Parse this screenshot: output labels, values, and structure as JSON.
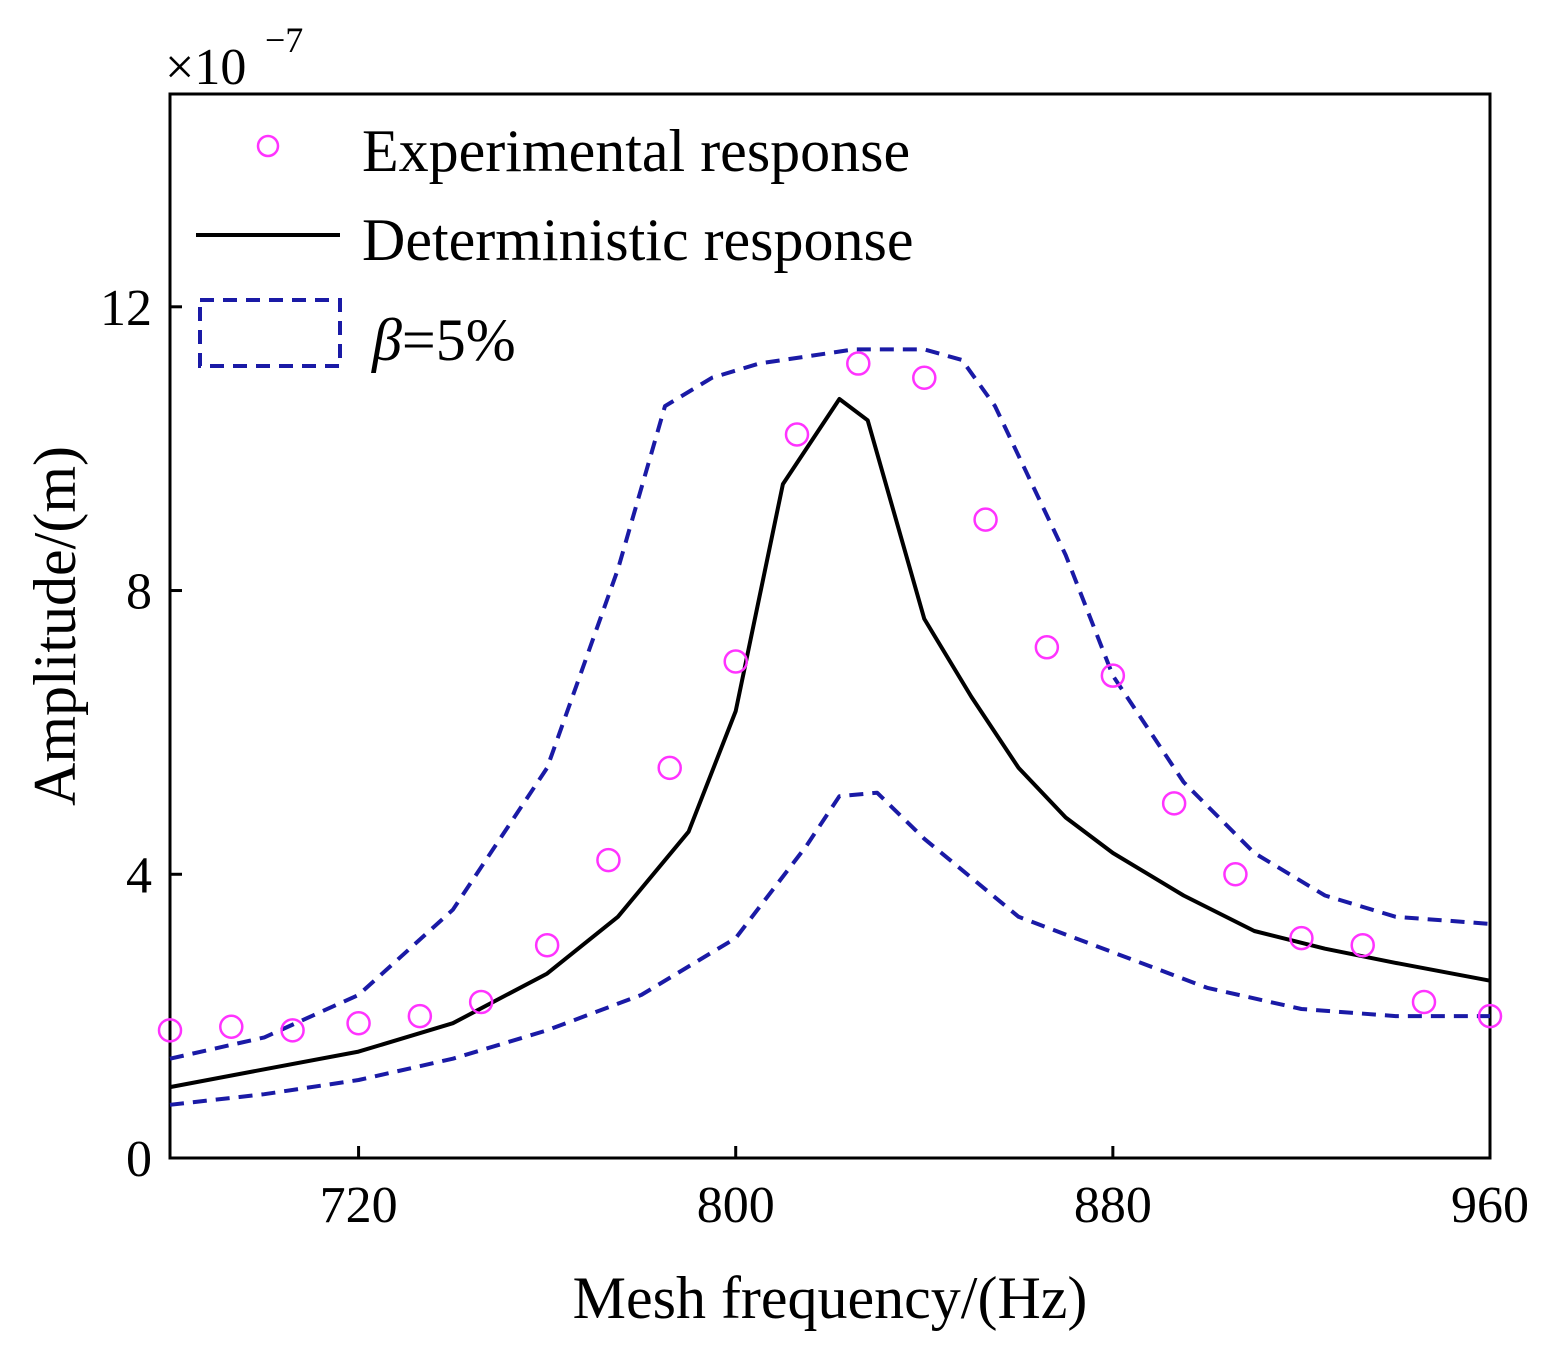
{
  "chart_data": {
    "type": "line",
    "title": "",
    "xlabel": "Mesh frequency/(Hz)",
    "ylabel": "Amplitude/(m)",
    "y_multiplier": {
      "base": "×10",
      "exponent": "−7"
    },
    "xlim": [
      680,
      960
    ],
    "ylim": [
      0,
      15
    ],
    "xticks": [
      720,
      800,
      880,
      960
    ],
    "yticks": [
      0,
      4,
      8,
      12
    ],
    "xtick_labels": [
      "720",
      "800",
      "880",
      "960"
    ],
    "ytick_labels": [
      "0",
      "4",
      "8",
      "12"
    ],
    "grid": false,
    "legend_position": "top-left",
    "series": [
      {
        "name": "Experimental response",
        "style": "circle-markers",
        "color": "#ff33ff",
        "x": [
          680,
          693,
          706,
          720,
          733,
          746,
          760,
          773,
          786,
          800,
          813,
          826,
          840,
          853,
          866,
          880,
          893,
          906,
          920,
          933,
          946,
          960
        ],
        "y": [
          1.8,
          1.85,
          1.8,
          1.9,
          2.0,
          2.2,
          3.0,
          4.2,
          5.5,
          7.0,
          10.2,
          11.2,
          11.0,
          9.0,
          7.2,
          6.8,
          5.0,
          4.0,
          3.1,
          3.0,
          2.2,
          2.0
        ]
      },
      {
        "name": "Deterministic response",
        "style": "solid",
        "color": "#000000",
        "x": [
          680,
          700,
          720,
          740,
          760,
          775,
          790,
          800,
          810,
          822,
          828,
          840,
          850,
          860,
          870,
          880,
          895,
          910,
          925,
          940,
          960
        ],
        "y": [
          1.0,
          1.25,
          1.5,
          1.9,
          2.6,
          3.4,
          4.6,
          6.3,
          9.5,
          10.7,
          10.4,
          7.6,
          6.5,
          5.5,
          4.8,
          4.3,
          3.7,
          3.2,
          2.95,
          2.75,
          2.5
        ]
      },
      {
        "name": "β=5%",
        "legend_label_prefix": "β",
        "legend_label_suffix": "=5%",
        "style": "dashed",
        "color": "#1a1aa6",
        "envelope": {
          "upper": {
            "x": [
              680,
              700,
              720,
              740,
              760,
              775,
              785,
              795,
              800,
              805,
              815,
              825,
              840,
              848,
              855,
              870,
              880,
              895,
              910,
              925,
              940,
              960
            ],
            "y": [
              1.4,
              1.7,
              2.3,
              3.5,
              5.5,
              8.3,
              10.6,
              11.0,
              11.1,
              11.2,
              11.3,
              11.4,
              11.4,
              11.25,
              10.6,
              8.5,
              6.8,
              5.3,
              4.3,
              3.7,
              3.4,
              3.3
            ]
          },
          "lower": {
            "x": [
              680,
              700,
              720,
              740,
              760,
              780,
              800,
              815,
              822,
              830,
              840,
              860,
              880,
              900,
              920,
              940,
              960
            ],
            "y": [
              0.75,
              0.9,
              1.1,
              1.4,
              1.8,
              2.3,
              3.1,
              4.4,
              5.1,
              5.15,
              4.5,
              3.4,
              2.9,
              2.4,
              2.1,
              2.0,
              2.0
            ]
          }
        }
      }
    ]
  }
}
